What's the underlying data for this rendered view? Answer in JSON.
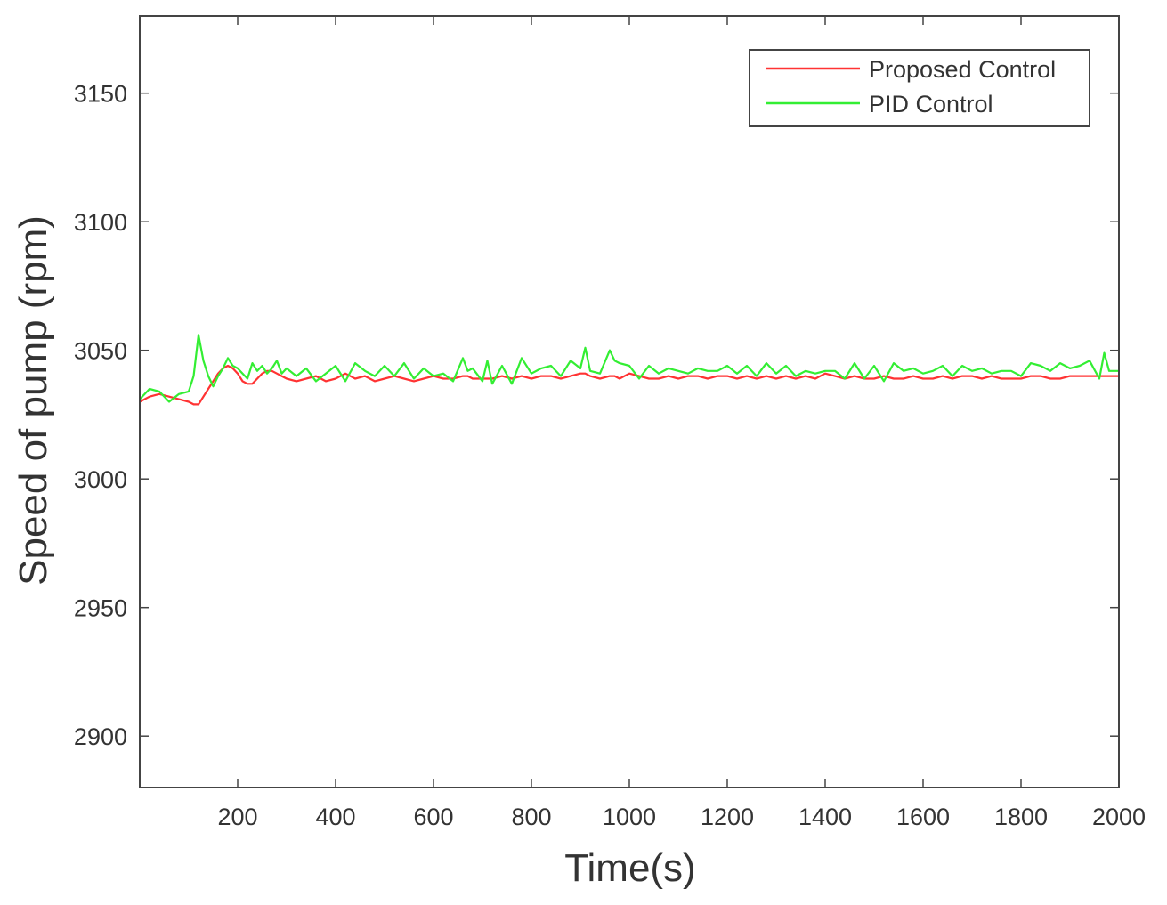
{
  "chart_data": {
    "type": "line",
    "title": "",
    "xlabel": "Time(s)",
    "ylabel": "Speed of pump (rpm)",
    "xlim": [
      0,
      2000
    ],
    "ylim": [
      2880,
      3180
    ],
    "xticks": [
      200,
      400,
      600,
      800,
      1000,
      1200,
      1400,
      1600,
      1800,
      2000
    ],
    "yticks": [
      2900,
      2950,
      3000,
      3050,
      3100,
      3150
    ],
    "grid": false,
    "legend_position": "top-right",
    "x": [
      0,
      20,
      40,
      60,
      80,
      100,
      110,
      120,
      130,
      140,
      150,
      160,
      170,
      180,
      190,
      200,
      210,
      220,
      230,
      240,
      250,
      260,
      270,
      280,
      290,
      300,
      320,
      340,
      360,
      380,
      400,
      420,
      440,
      460,
      480,
      500,
      520,
      540,
      560,
      580,
      600,
      620,
      640,
      660,
      670,
      680,
      700,
      710,
      720,
      740,
      760,
      780,
      800,
      820,
      840,
      860,
      880,
      900,
      910,
      920,
      940,
      960,
      970,
      980,
      1000,
      1020,
      1040,
      1060,
      1080,
      1100,
      1120,
      1140,
      1160,
      1180,
      1200,
      1220,
      1240,
      1260,
      1280,
      1300,
      1320,
      1340,
      1360,
      1380,
      1400,
      1420,
      1440,
      1460,
      1480,
      1500,
      1520,
      1540,
      1560,
      1580,
      1600,
      1620,
      1640,
      1660,
      1680,
      1700,
      1720,
      1740,
      1760,
      1780,
      1800,
      1820,
      1840,
      1860,
      1880,
      1900,
      1920,
      1940,
      1960,
      1970,
      1980,
      2000
    ],
    "series": [
      {
        "name": "Proposed Control",
        "color": "#ff3333",
        "values": [
          3030,
          3032,
          3033,
          3032,
          3031,
          3030,
          3029,
          3029,
          3032,
          3035,
          3038,
          3041,
          3043,
          3044,
          3043,
          3041,
          3038,
          3037,
          3037,
          3039,
          3041,
          3042,
          3042,
          3041,
          3040,
          3039,
          3038,
          3039,
          3040,
          3038,
          3039,
          3041,
          3039,
          3040,
          3038,
          3039,
          3040,
          3039,
          3038,
          3039,
          3040,
          3039,
          3039,
          3040,
          3040,
          3039,
          3039,
          3039,
          3039,
          3040,
          3039,
          3040,
          3039,
          3040,
          3040,
          3039,
          3040,
          3041,
          3041,
          3040,
          3039,
          3040,
          3040,
          3039,
          3041,
          3040,
          3039,
          3039,
          3040,
          3039,
          3040,
          3040,
          3039,
          3040,
          3040,
          3039,
          3040,
          3039,
          3040,
          3039,
          3040,
          3039,
          3040,
          3039,
          3041,
          3040,
          3039,
          3040,
          3039,
          3039,
          3040,
          3039,
          3039,
          3040,
          3039,
          3039,
          3040,
          3039,
          3040,
          3040,
          3039,
          3040,
          3039,
          3039,
          3039,
          3040,
          3040,
          3039,
          3039,
          3040,
          3040,
          3040,
          3040,
          3040,
          3040,
          3040
        ]
      },
      {
        "name": "PID Control",
        "color": "#33ee33",
        "values": [
          3031,
          3035,
          3034,
          3030,
          3033,
          3034,
          3040,
          3056,
          3046,
          3040,
          3036,
          3040,
          3043,
          3047,
          3044,
          3043,
          3041,
          3039,
          3045,
          3042,
          3044,
          3041,
          3043,
          3046,
          3041,
          3043,
          3040,
          3043,
          3038,
          3041,
          3044,
          3038,
          3045,
          3042,
          3040,
          3044,
          3040,
          3045,
          3039,
          3043,
          3040,
          3041,
          3038,
          3047,
          3042,
          3043,
          3038,
          3046,
          3037,
          3044,
          3037,
          3047,
          3041,
          3043,
          3044,
          3040,
          3046,
          3043,
          3051,
          3042,
          3041,
          3050,
          3046,
          3045,
          3044,
          3039,
          3044,
          3041,
          3043,
          3042,
          3041,
          3043,
          3042,
          3042,
          3044,
          3041,
          3044,
          3040,
          3045,
          3041,
          3044,
          3040,
          3042,
          3041,
          3042,
          3042,
          3039,
          3045,
          3039,
          3044,
          3038,
          3045,
          3042,
          3043,
          3041,
          3042,
          3044,
          3040,
          3044,
          3042,
          3043,
          3041,
          3042,
          3042,
          3040,
          3045,
          3044,
          3042,
          3045,
          3043,
          3044,
          3046,
          3039,
          3049,
          3042,
          3042
        ]
      }
    ]
  }
}
